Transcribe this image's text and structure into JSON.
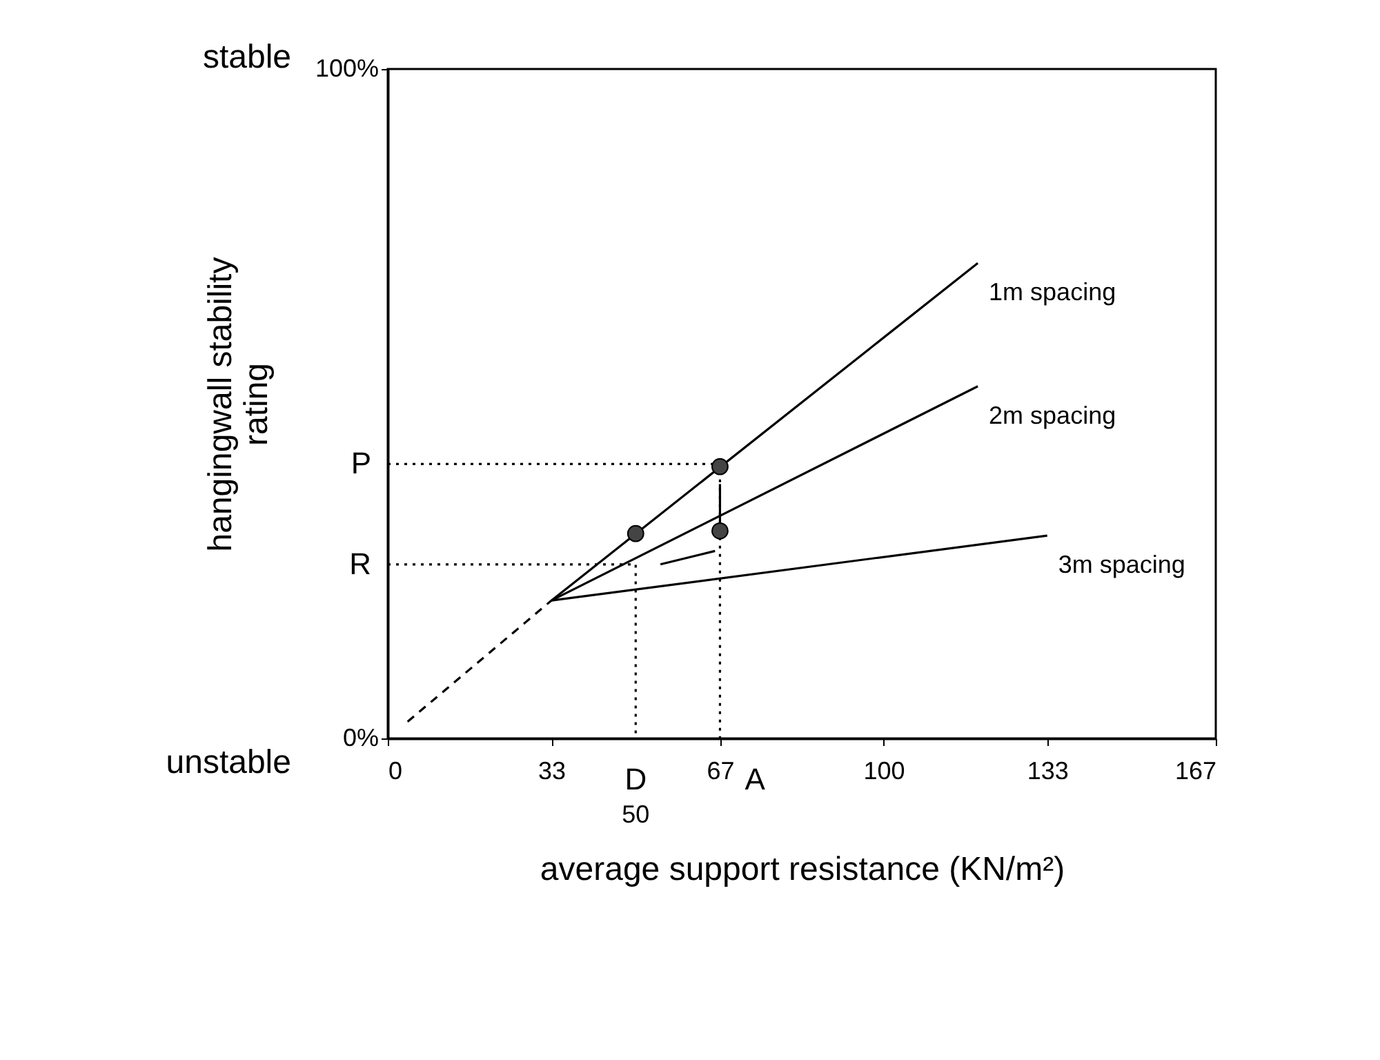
{
  "chart_data": {
    "type": "line",
    "xlabel": "average support resistance  (KN/m²)",
    "ylabel": "hangingwall stability rating",
    "xlim": [
      0,
      167
    ],
    "ylim": [
      0,
      100
    ],
    "xticks": [
      0,
      33,
      67,
      100,
      133,
      167
    ],
    "yticks": [
      {
        "value": 0,
        "label": "0%"
      },
      {
        "value": 100,
        "label": "100%"
      }
    ],
    "grid": false,
    "marker": "none",
    "series": [
      {
        "name": "1m spacing",
        "color": "#000000",
        "x": [
          33,
          119
        ],
        "values": [
          20.6,
          71
        ]
      },
      {
        "name": "2m spacing",
        "color": "#000000",
        "x": [
          33,
          119
        ],
        "values": [
          20.6,
          52.6
        ]
      },
      {
        "name": "3m spacing",
        "color": "#000000",
        "x": [
          33,
          133
        ],
        "values": [
          20.6,
          30.3
        ]
      },
      {
        "color": "#000000",
        "line_style": "dashed",
        "x": [
          4,
          33
        ],
        "values": [
          2.5,
          20.6
        ]
      },
      {
        "color": "#000000",
        "line_style": "dotted",
        "x": [
          0,
          67,
          67
        ],
        "values": [
          41,
          41,
          0
        ]
      },
      {
        "color": "#000000",
        "line_style": "dotted",
        "x": [
          0,
          50,
          50
        ],
        "values": [
          26,
          26,
          0
        ]
      },
      {
        "color": "#000000",
        "x": [
          67,
          67
        ],
        "values": [
          31,
          38
        ]
      },
      {
        "color": "#000000",
        "x": [
          66,
          55
        ],
        "values": [
          28,
          26
        ]
      },
      {
        "type": "scatter",
        "color": "#444444",
        "marker": "circle",
        "x": [
          50,
          67,
          67
        ],
        "values": [
          30.6,
          40.6,
          31
        ]
      }
    ],
    "annotations": [
      "stable",
      "unstable",
      {
        "text": "P",
        "x": 0,
        "y": 41
      },
      {
        "text": "R",
        "x": 0,
        "y": 26
      },
      {
        "text": "D",
        "x": 50,
        "y": 0
      },
      {
        "text": "50",
        "x": 50,
        "y": 0
      },
      {
        "text": "A",
        "x": 67,
        "y": 0
      }
    ]
  }
}
